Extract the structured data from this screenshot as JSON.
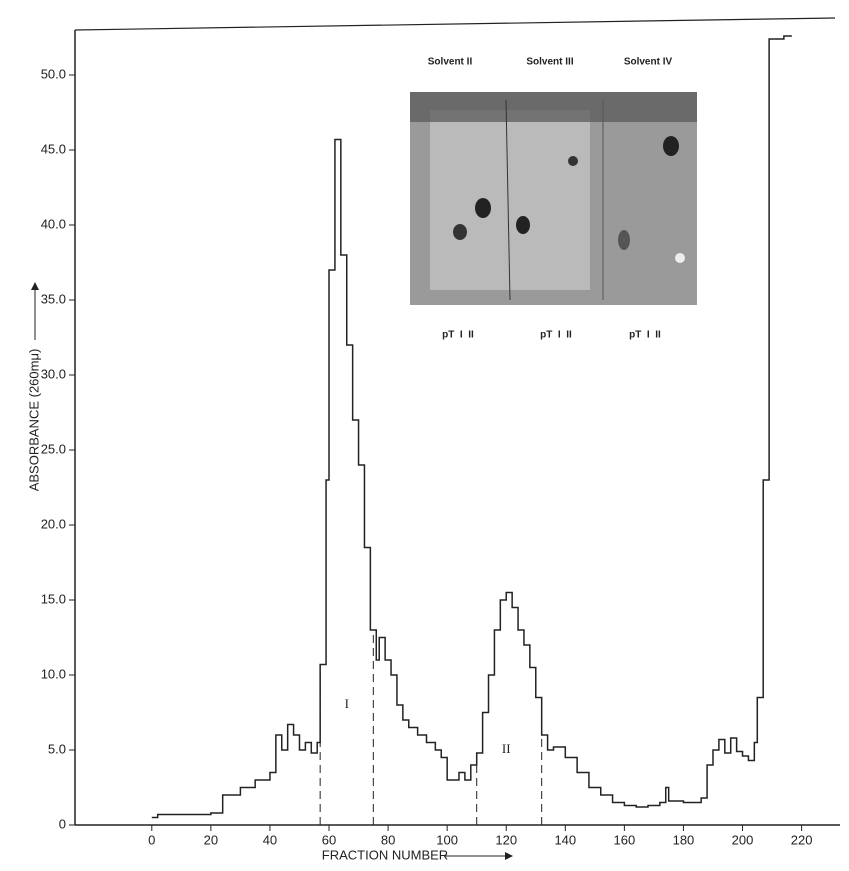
{
  "chart_data": {
    "type": "step",
    "xlabel": "FRACTION NUMBER",
    "ylabel": "ABSORBANCE (260mμ)",
    "xlim": [
      -26,
      233
    ],
    "ylim": [
      0,
      53
    ],
    "xticks": [
      0,
      20,
      40,
      60,
      80,
      100,
      120,
      140,
      160,
      180,
      200,
      220
    ],
    "yticks": [
      0,
      {
        "value": 5,
        "label": "5.0"
      },
      {
        "value": 10,
        "label": "10.0"
      },
      {
        "value": 15,
        "label": "15.0"
      },
      {
        "value": 20,
        "label": "20.0"
      },
      {
        "value": 25,
        "label": "25.0"
      },
      {
        "value": 30,
        "label": "30.0"
      },
      {
        "value": 35,
        "label": "35.0"
      },
      {
        "value": 40,
        "label": "40.0"
      },
      {
        "value": 45,
        "label": "45.0"
      },
      {
        "value": 50,
        "label": "50.0"
      }
    ],
    "color": "#222",
    "x": [
      0,
      2,
      20,
      24,
      30,
      35,
      40,
      42,
      44,
      46,
      48,
      50,
      52,
      54,
      56,
      57,
      59,
      60,
      62,
      64,
      66,
      68,
      70,
      72,
      74,
      76,
      77,
      79,
      81,
      83,
      85,
      87,
      90,
      93,
      96,
      98,
      100,
      104,
      106,
      108,
      110,
      112,
      114,
      116,
      118,
      120,
      122,
      124,
      126,
      128,
      130,
      132,
      134,
      136,
      140,
      144,
      148,
      152,
      156,
      160,
      164,
      168,
      172,
      174,
      175,
      180,
      186,
      188,
      190,
      192,
      194,
      196,
      198,
      200,
      202,
      204,
      205,
      207,
      209,
      214
    ],
    "values": [
      0.5,
      0.7,
      0.8,
      2,
      2.5,
      3,
      3.5,
      6,
      5,
      6.7,
      6,
      5,
      5.5,
      4.8,
      5.5,
      10.7,
      23,
      37,
      45.7,
      38,
      32,
      27,
      24,
      18.5,
      13,
      11,
      12.5,
      11,
      10,
      8,
      7,
      6.5,
      6,
      5.5,
      5,
      4.5,
      3,
      3.5,
      3,
      4,
      4.8,
      7.5,
      10,
      13,
      15,
      15.5,
      14.5,
      13,
      12,
      10.5,
      8.5,
      6,
      5,
      5.2,
      4.5,
      3.5,
      2.5,
      2,
      1.5,
      1.3,
      1.2,
      1.3,
      1.5,
      2.5,
      1.6,
      1.5,
      1.8,
      4,
      5,
      5.7,
      4.8,
      5.8,
      4.9,
      4.6,
      4.3,
      5.5,
      8.5,
      23,
      52.4,
      52.6
    ],
    "dividers": [
      57,
      75,
      110,
      132
    ],
    "peak_labels": [
      "I",
      "II"
    ],
    "inset": {
      "solvents": [
        "Solvent II",
        "Solvent III",
        "Solvent IV"
      ],
      "lanes": [
        "pT  I  II",
        "pT  I  II",
        "pT  I  II"
      ]
    }
  }
}
